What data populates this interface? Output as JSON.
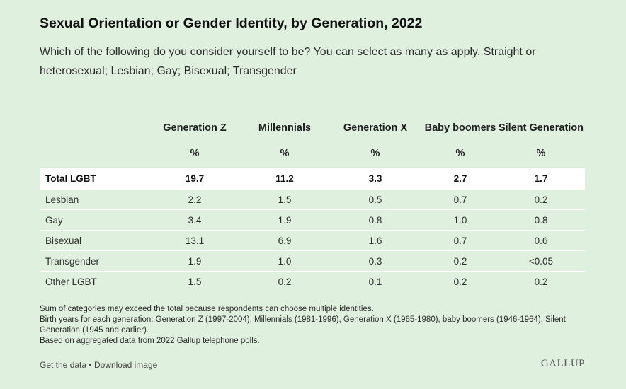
{
  "chart_data": {
    "type": "table",
    "title": "Sexual Orientation or Gender Identity, by Generation, 2022",
    "subtitle": "Which of the following do you consider yourself to be? You can select as many as apply. Straight or heterosexual; Lesbian; Gay; Bisexual; Transgender",
    "columns": [
      {
        "name": "Generation Z",
        "unit": "%"
      },
      {
        "name": "Millennials",
        "unit": "%"
      },
      {
        "name": "Generation X",
        "unit": "%"
      },
      {
        "name": "Baby boomers",
        "unit": "%"
      },
      {
        "name": "Silent Generation",
        "unit": "%"
      }
    ],
    "rows": [
      {
        "label": "Total LGBT",
        "values": [
          "19.7",
          "11.2",
          "3.3",
          "2.7",
          "1.7"
        ],
        "highlight": true
      },
      {
        "label": "Lesbian",
        "values": [
          "2.2",
          "1.5",
          "0.5",
          "0.7",
          "0.2"
        ]
      },
      {
        "label": "Gay",
        "values": [
          "3.4",
          "1.9",
          "0.8",
          "1.0",
          "0.8"
        ]
      },
      {
        "label": "Bisexual",
        "values": [
          "13.1",
          "6.9",
          "1.6",
          "0.7",
          "0.6"
        ]
      },
      {
        "label": "Transgender",
        "values": [
          "1.9",
          "1.0",
          "0.3",
          "0.2",
          "<0.05"
        ]
      },
      {
        "label": "Other LGBT",
        "values": [
          "1.5",
          "0.2",
          "0.1",
          "0.2",
          "0.2"
        ]
      }
    ]
  },
  "notes": [
    "Sum of categories may exceed the total because respondents can choose multiple identities.",
    "Birth years for each generation: Generation Z (1997-2004), Millennials (1981-1996), Generation X (1965-1980), baby boomers (1946-1964), Silent Generation (1945 and earlier).",
    "Based on aggregated data from 2022 Gallup telephone polls."
  ],
  "footer": {
    "get_data": "Get the data",
    "separator": "•",
    "download": "Download image",
    "brand": "GALLUP"
  },
  "colors": {
    "background": "#e0f0df",
    "highlight_row": "#ffffff"
  }
}
